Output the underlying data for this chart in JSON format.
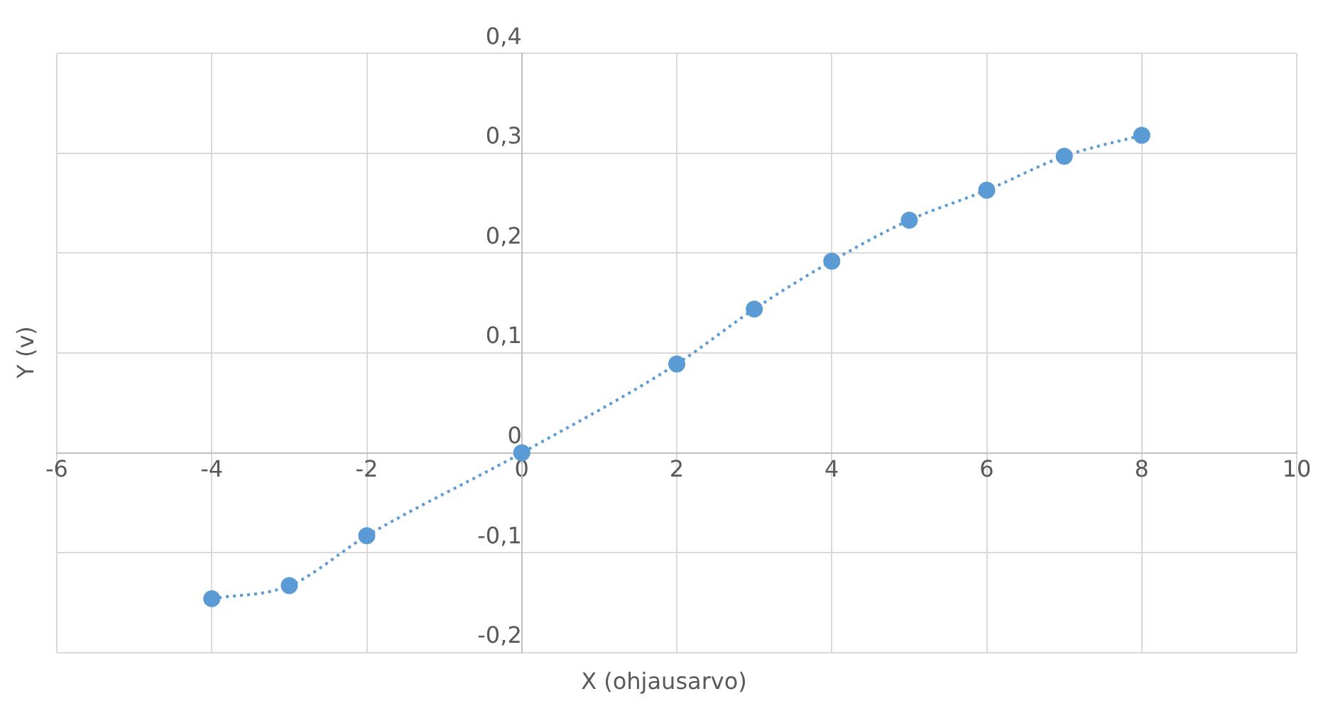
{
  "chart_data": {
    "type": "line",
    "xlabel": "X (ohjausarvo)",
    "ylabel": "Y (v)",
    "x": [
      -4,
      -3,
      -2,
      0,
      2,
      3,
      4,
      5,
      6,
      7,
      8
    ],
    "series": [
      {
        "color": "#5b9bd5",
        "values": [
          -0.146,
          -0.133,
          -0.083,
          0,
          0.089,
          0.144,
          0.192,
          0.233,
          0.263,
          0.297,
          0.318
        ]
      }
    ],
    "xlim": [
      -6,
      10
    ],
    "xticks": [
      -6,
      -4,
      -2,
      0,
      2,
      4,
      6,
      8,
      10
    ],
    "ylim": [
      -0.2,
      0.4
    ],
    "yticks": [
      {
        "value": -0.2,
        "label": "-0,2"
      },
      {
        "value": -0.1,
        "label": "-0,1"
      },
      0,
      {
        "value": 0.1,
        "label": "0,1"
      },
      {
        "value": 0.2,
        "label": "0,2"
      },
      {
        "value": 0.3,
        "label": "0,3"
      },
      {
        "value": 0.4,
        "label": "0,4"
      }
    ],
    "grid": true,
    "legend": false,
    "marker": "circle",
    "line_style": "dotted"
  }
}
